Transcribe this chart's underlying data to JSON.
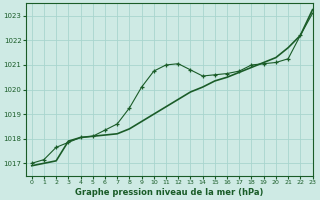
{
  "xlabel": "Graphe pression niveau de la mer (hPa)",
  "bg_color": "#ceeae4",
  "grid_color": "#a8d5ce",
  "line_color": "#1a5c28",
  "ylim": [
    1016.5,
    1023.5
  ],
  "xlim": [
    -0.5,
    23
  ],
  "yticks": [
    1017,
    1018,
    1019,
    1020,
    1021,
    1022,
    1023
  ],
  "xticks": [
    0,
    1,
    2,
    3,
    4,
    5,
    6,
    7,
    8,
    9,
    10,
    11,
    12,
    13,
    14,
    15,
    16,
    17,
    18,
    19,
    20,
    21,
    22,
    23
  ],
  "line1_x": [
    0,
    1,
    2,
    3,
    4,
    5,
    6,
    7,
    8,
    9,
    10,
    11,
    12,
    13,
    14,
    15,
    16,
    17,
    18,
    19,
    20,
    21,
    22,
    23
  ],
  "line1_y": [
    1017.0,
    1017.15,
    1017.65,
    1017.85,
    1018.05,
    1018.1,
    1018.35,
    1018.6,
    1019.25,
    1020.1,
    1020.75,
    1021.0,
    1021.05,
    1020.8,
    1020.55,
    1020.6,
    1020.65,
    1020.75,
    1021.0,
    1021.05,
    1021.1,
    1021.25,
    1022.2,
    1023.1
  ],
  "line2_x": [
    0,
    1,
    2,
    3,
    4,
    5,
    6,
    7,
    8,
    9,
    10,
    11,
    12,
    13,
    14,
    15,
    16,
    17,
    18,
    19,
    20,
    21,
    22,
    23
  ],
  "line2_y": [
    1016.9,
    1017.0,
    1017.1,
    1017.9,
    1018.05,
    1018.1,
    1018.15,
    1018.2,
    1018.4,
    1018.7,
    1019.0,
    1019.3,
    1019.6,
    1019.9,
    1020.1,
    1020.35,
    1020.5,
    1020.7,
    1020.9,
    1021.1,
    1021.3,
    1021.7,
    1022.2,
    1023.25
  ]
}
